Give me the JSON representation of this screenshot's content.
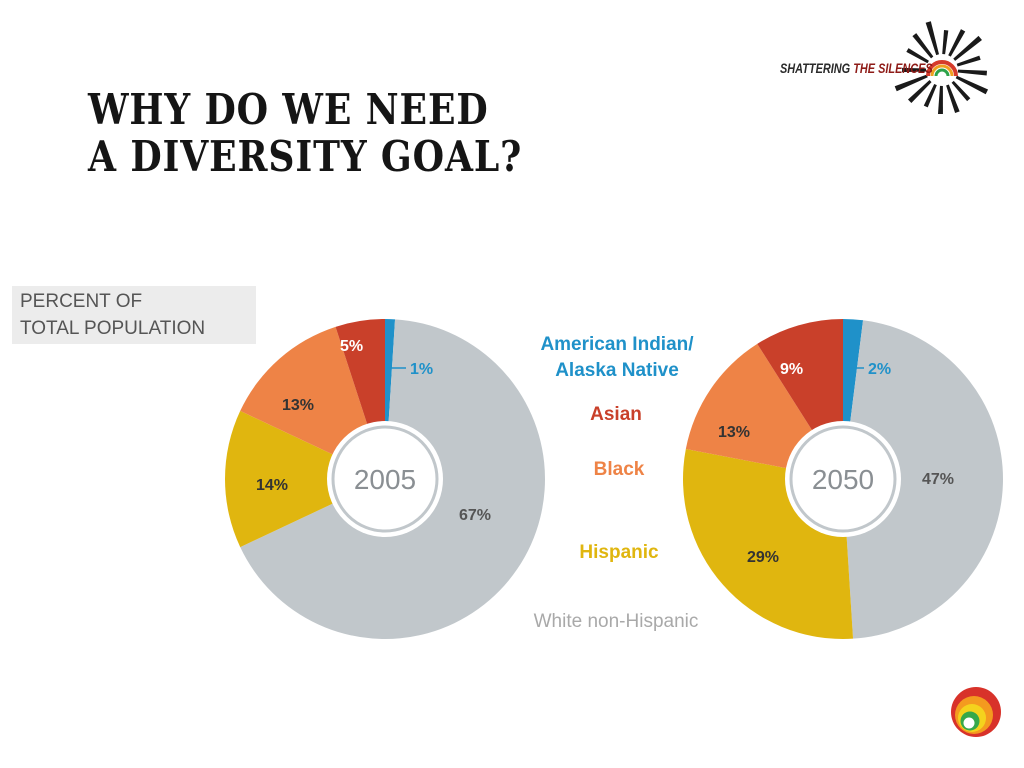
{
  "slide": {
    "title_lines": [
      "WHY DO WE NEED",
      "A DIVERSITY GOAL?"
    ]
  },
  "brand": {
    "name_part1": "SHATTERING",
    "name_part2": "THE SILENCES",
    "icon": "starburst-rainbow-icon"
  },
  "footer": {
    "icon": "rainbow-swirl-icon"
  },
  "chart_data": {
    "type": "pie",
    "subtitle": "PERCENT OF TOTAL POPULATION",
    "subtitle_lines": [
      "PERCENT OF",
      "TOTAL POPULATION"
    ],
    "legend": [
      {
        "name": "American Indian/ Alaska Native",
        "lines": [
          "American Indian/",
          "Alaska Native"
        ],
        "color": "#1f91c9"
      },
      {
        "name": "Asian",
        "lines": [
          "Asian"
        ],
        "color": "#c9402a"
      },
      {
        "name": "Black",
        "lines": [
          "Black"
        ],
        "color": "#ee8346"
      },
      {
        "name": "Hispanic",
        "lines": [
          "Hispanic"
        ],
        "color": "#e0b60f"
      },
      {
        "name": "White non-Hispanic",
        "lines": [
          "White non-Hispanic"
        ],
        "color": "#a9a9a9"
      }
    ],
    "charts": [
      {
        "year": "2005",
        "slices": [
          {
            "category": "American Indian/ Alaska Native",
            "value": 1,
            "label": "1%"
          },
          {
            "category": "White non-Hispanic",
            "value": 67,
            "label": "67%"
          },
          {
            "category": "Hispanic",
            "value": 14,
            "label": "14%"
          },
          {
            "category": "Black",
            "value": 13,
            "label": "13%"
          },
          {
            "category": "Asian",
            "value": 5,
            "label": "5%"
          }
        ]
      },
      {
        "year": "2050",
        "slices": [
          {
            "category": "American Indian/ Alaska Native",
            "value": 2,
            "label": "2%"
          },
          {
            "category": "White non-Hispanic",
            "value": 47,
            "label": "47%"
          },
          {
            "category": "Hispanic",
            "value": 29,
            "label": "29%"
          },
          {
            "category": "Black",
            "value": 13,
            "label": "13%"
          },
          {
            "category": "Asian",
            "value": 9,
            "label": "9%"
          }
        ]
      }
    ],
    "colors": {
      "American Indian/ Alaska Native": "#1f91c9",
      "Asian": "#c9402a",
      "Black": "#ee8346",
      "Hispanic": "#e0b60f",
      "White non-Hispanic": "#c1c7cb"
    }
  }
}
